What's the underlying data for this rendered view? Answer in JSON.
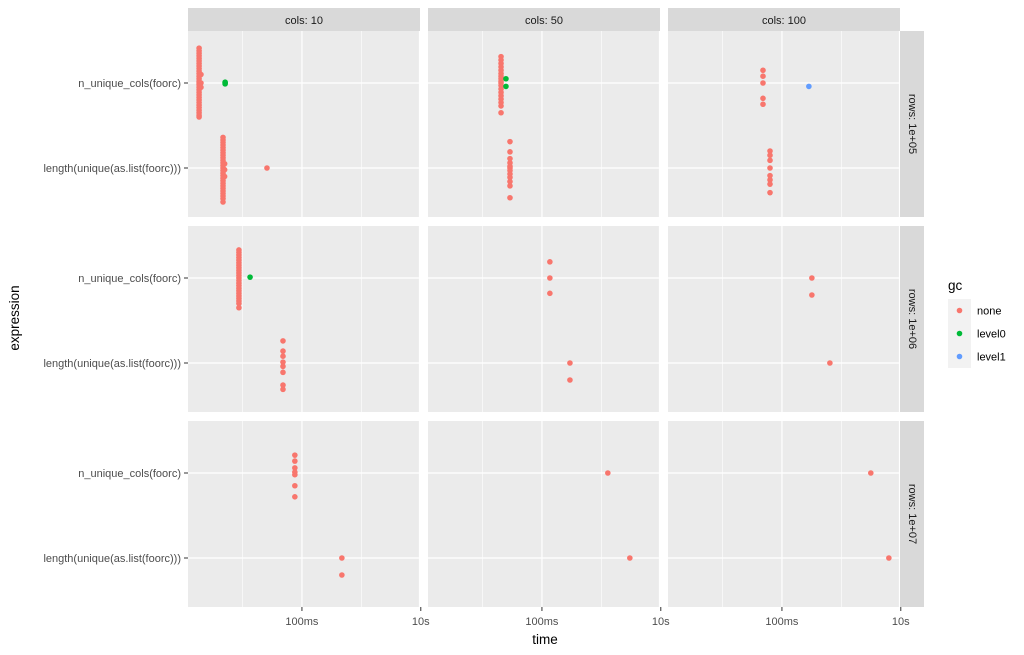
{
  "chart_data": {
    "type": "scatter",
    "xlabel": "time",
    "ylabel": "expression",
    "x_scale": "log10",
    "x_unit": "ms",
    "xlim_ms": [
      1.21,
      9700
    ],
    "x_ticks": [
      {
        "value_ms": 100,
        "label": "100ms"
      },
      {
        "value_ms": 10000,
        "label": "10s"
      }
    ],
    "x_minor_ms": [
      10,
      1000
    ],
    "categories": [
      "length(unique(as.list(foorc)))",
      "n_unique_cols(foorc)"
    ],
    "facet_cols": [
      "cols: 10",
      "cols: 50",
      "cols: 100"
    ],
    "facet_rows": [
      "rows: 1e+05",
      "rows: 1e+06",
      "rows: 1e+07"
    ],
    "legend": {
      "title": "gc",
      "position": "right",
      "entries": [
        {
          "key": "none",
          "label": "none",
          "color": "#F8766D"
        },
        {
          "key": "level0",
          "label": "level0",
          "color": "#00BA38"
        },
        {
          "key": "level1",
          "label": "level1",
          "color": "#619CFF"
        }
      ]
    },
    "groups": [
      {
        "row": 0,
        "col": 0,
        "expr": 1,
        "gc": "none",
        "time_ms": 1.86,
        "jitter": [
          0.41,
          0.38,
          0.35,
          0.32,
          0.29,
          0.26,
          0.23,
          0.2,
          0.17,
          0.14,
          0.11,
          0.08,
          0.05,
          0.02,
          0,
          -0.02,
          -0.05,
          -0.08,
          -0.11,
          -0.14,
          -0.17,
          -0.2,
          -0.23,
          -0.26,
          -0.29,
          -0.32,
          -0.35,
          -0.38,
          -0.4
        ]
      },
      {
        "row": 0,
        "col": 0,
        "expr": 1,
        "gc": "none",
        "time_ms": 2.0,
        "jitter": [
          0.0,
          0.1,
          -0.05
        ]
      },
      {
        "row": 0,
        "col": 0,
        "expr": 1,
        "gc": "level0",
        "time_ms": 5.1,
        "jitter": [
          0.01,
          0,
          -0.01
        ]
      },
      {
        "row": 0,
        "col": 0,
        "expr": 0,
        "gc": "none",
        "time_ms": 4.7,
        "jitter": [
          0.36,
          0.33,
          0.3,
          0.27,
          0.24,
          0.21,
          0.18,
          0.15,
          0.12,
          0.09,
          0.06,
          0.03,
          0,
          -0.03,
          -0.06,
          -0.09,
          -0.12,
          -0.15,
          -0.18,
          -0.21,
          -0.24,
          -0.27,
          -0.3,
          -0.33,
          -0.36,
          -0.4
        ]
      },
      {
        "row": 0,
        "col": 0,
        "expr": 0,
        "gc": "none",
        "time_ms": 5.0,
        "jitter": [
          0.05,
          -0.02,
          -0.1
        ]
      },
      {
        "row": 0,
        "col": 0,
        "expr": 0,
        "gc": "none",
        "time_ms": 25.8,
        "jitter": [
          0
        ]
      },
      {
        "row": 0,
        "col": 1,
        "expr": 1,
        "gc": "none",
        "time_ms": 20.5,
        "jitter": [
          0.31,
          0.27,
          0.23,
          0.19,
          0.15,
          0.11,
          0.08,
          0.05,
          0.02,
          0,
          -0.03,
          -0.07,
          -0.11,
          -0.15,
          -0.19,
          -0.23,
          -0.27,
          -0.35
        ]
      },
      {
        "row": 0,
        "col": 1,
        "expr": 1,
        "gc": "level0",
        "time_ms": 24.8,
        "jitter": [
          0.05,
          -0.04
        ]
      },
      {
        "row": 0,
        "col": 1,
        "expr": 0,
        "gc": "none",
        "time_ms": 29,
        "jitter": [
          0.31,
          0.19,
          0.11,
          0.06,
          0.02,
          0,
          -0.03,
          -0.07,
          -0.11,
          -0.16,
          -0.21,
          -0.35
        ]
      },
      {
        "row": 0,
        "col": 2,
        "expr": 1,
        "gc": "none",
        "time_ms": 48,
        "jitter": [
          0.15,
          0.08,
          0,
          -0.18,
          -0.25
        ]
      },
      {
        "row": 0,
        "col": 2,
        "expr": 1,
        "gc": "level1",
        "time_ms": 284,
        "jitter": [
          -0.04
        ]
      },
      {
        "row": 0,
        "col": 2,
        "expr": 0,
        "gc": "none",
        "time_ms": 63,
        "jitter": [
          0.2,
          0.15,
          0.09,
          0,
          -0.09,
          -0.14,
          -0.19,
          -0.29
        ]
      },
      {
        "row": 1,
        "col": 0,
        "expr": 1,
        "gc": "none",
        "time_ms": 8.7,
        "jitter": [
          0.33,
          0.3,
          0.27,
          0.24,
          0.21,
          0.18,
          0.15,
          0.12,
          0.09,
          0.06,
          0.03,
          0,
          -0.03,
          -0.06,
          -0.09,
          -0.12,
          -0.15,
          -0.18,
          -0.21,
          -0.24,
          -0.27,
          -0.3,
          -0.35
        ]
      },
      {
        "row": 1,
        "col": 0,
        "expr": 1,
        "gc": "level0",
        "time_ms": 13.4,
        "jitter": [
          0.01
        ]
      },
      {
        "row": 1,
        "col": 0,
        "expr": 0,
        "gc": "none",
        "time_ms": 48,
        "jitter": [
          0.26,
          0.14,
          0.08,
          0.01,
          -0.04,
          -0.11,
          -0.26,
          -0.31
        ]
      },
      {
        "row": 1,
        "col": 1,
        "expr": 1,
        "gc": "none",
        "time_ms": 136,
        "jitter": [
          0.19,
          0,
          -0.18
        ]
      },
      {
        "row": 1,
        "col": 1,
        "expr": 0,
        "gc": "none",
        "time_ms": 296,
        "jitter": [
          0,
          -0.2
        ]
      },
      {
        "row": 1,
        "col": 2,
        "expr": 1,
        "gc": "none",
        "time_ms": 319,
        "jitter": [
          0,
          -0.2
        ]
      },
      {
        "row": 1,
        "col": 2,
        "expr": 0,
        "gc": "none",
        "time_ms": 641,
        "jitter": [
          0
        ]
      },
      {
        "row": 2,
        "col": 0,
        "expr": 1,
        "gc": "none",
        "time_ms": 76,
        "jitter": [
          0.21,
          0.14,
          0.06,
          0.01,
          -0.02,
          -0.15,
          -0.28
        ]
      },
      {
        "row": 2,
        "col": 0,
        "expr": 0,
        "gc": "none",
        "time_ms": 470,
        "jitter": [
          0,
          -0.2
        ]
      },
      {
        "row": 2,
        "col": 1,
        "expr": 1,
        "gc": "none",
        "time_ms": 1285,
        "jitter": [
          0
        ]
      },
      {
        "row": 2,
        "col": 1,
        "expr": 0,
        "gc": "none",
        "time_ms": 3015,
        "jitter": [
          0
        ]
      },
      {
        "row": 2,
        "col": 2,
        "expr": 1,
        "gc": "none",
        "time_ms": 3130,
        "jitter": [
          0
        ]
      },
      {
        "row": 2,
        "col": 2,
        "expr": 0,
        "gc": "none",
        "time_ms": 6300,
        "jitter": [
          0
        ]
      }
    ]
  }
}
